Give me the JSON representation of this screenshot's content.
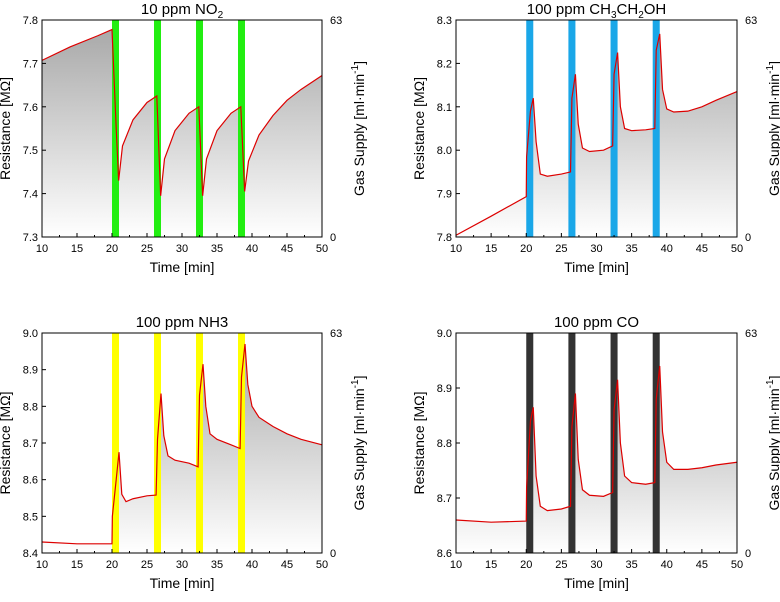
{
  "chart_data": [
    {
      "type": "line",
      "title": "10 ppm NO",
      "title_sub": "2",
      "title_tail": "",
      "xlabel": "Time [min]",
      "ylabel": "Resistance [MΩ]",
      "y2label_main": "Gas Supply [ml·min",
      "y2label_sup": "-1",
      "y2label_end": "]",
      "xlim": [
        10,
        50
      ],
      "ylim": [
        7.3,
        7.8
      ],
      "xticks": [
        "10",
        "15",
        "20",
        "25",
        "30",
        "35",
        "40",
        "45",
        "50"
      ],
      "yticks": [
        "7.3",
        "7.4",
        "7.5",
        "7.6",
        "7.7",
        "7.8"
      ],
      "y2ticks": [
        "0",
        "63"
      ],
      "pulse_color": "#22ee11",
      "pulses": [
        [
          20.0,
          21.0
        ],
        [
          26.0,
          27.0
        ],
        [
          32.0,
          33.0
        ],
        [
          38.0,
          39.0
        ]
      ],
      "series": [
        {
          "name": "Resistance",
          "color": "#dd0000",
          "points": [
            [
              10,
              7.707
            ],
            [
              14,
              7.738
            ],
            [
              18,
              7.764
            ],
            [
              20,
              7.778
            ],
            [
              20.6,
              7.55
            ],
            [
              20.95,
              7.43
            ],
            [
              21.5,
              7.51
            ],
            [
              23,
              7.57
            ],
            [
              25,
              7.61
            ],
            [
              26.4,
              7.625
            ],
            [
              26.95,
              7.395
            ],
            [
              27.5,
              7.48
            ],
            [
              29,
              7.545
            ],
            [
              31,
              7.585
            ],
            [
              32.4,
              7.6
            ],
            [
              32.95,
              7.395
            ],
            [
              33.5,
              7.48
            ],
            [
              35,
              7.545
            ],
            [
              37,
              7.585
            ],
            [
              38.4,
              7.6
            ],
            [
              38.95,
              7.405
            ],
            [
              39.5,
              7.475
            ],
            [
              41,
              7.535
            ],
            [
              43,
              7.58
            ],
            [
              45,
              7.615
            ],
            [
              47,
              7.64
            ],
            [
              50,
              7.672
            ]
          ]
        }
      ]
    },
    {
      "type": "line",
      "title": "100 ppm CH",
      "title_sub": "3",
      "title_tail": "CH",
      "title_sub2": "2",
      "title_end": "OH",
      "xlabel": "Time [min]",
      "ylabel": "Resistance [MΩ]",
      "y2label_main": "Gas Supply [ml·min",
      "y2label_sup": "-1",
      "y2label_end": "]",
      "xlim": [
        10,
        50
      ],
      "ylim": [
        7.8,
        8.3
      ],
      "xticks": [
        "10",
        "15",
        "20",
        "25",
        "30",
        "35",
        "40",
        "45",
        "50"
      ],
      "yticks": [
        "7.8",
        "7.9",
        "8.0",
        "8.1",
        "8.2",
        "8.3"
      ],
      "y2ticks": [
        "0",
        "63"
      ],
      "pulse_color": "#1aa7e8",
      "pulses": [
        [
          20.0,
          21.0
        ],
        [
          26.0,
          27.0
        ],
        [
          32.0,
          33.0
        ],
        [
          38.0,
          39.0
        ]
      ],
      "series": [
        {
          "name": "Resistance",
          "color": "#dd0000",
          "points": [
            [
              10,
              7.804
            ],
            [
              15,
              7.848
            ],
            [
              20,
              7.893
            ],
            [
              20.05,
              7.985
            ],
            [
              20.6,
              8.09
            ],
            [
              21,
              8.12
            ],
            [
              21.4,
              8.02
            ],
            [
              22,
              7.945
            ],
            [
              23,
              7.94
            ],
            [
              25,
              7.945
            ],
            [
              26.3,
              7.95
            ],
            [
              26.5,
              8.12
            ],
            [
              27,
              8.175
            ],
            [
              27.4,
              8.06
            ],
            [
              28,
              8.005
            ],
            [
              29,
              7.997
            ],
            [
              31,
              8.0
            ],
            [
              32.3,
              8.01
            ],
            [
              32.5,
              8.175
            ],
            [
              33,
              8.225
            ],
            [
              33.4,
              8.1
            ],
            [
              34,
              8.05
            ],
            [
              35,
              8.045
            ],
            [
              37,
              8.047
            ],
            [
              38.3,
              8.05
            ],
            [
              38.5,
              8.23
            ],
            [
              39,
              8.268
            ],
            [
              39.4,
              8.14
            ],
            [
              40,
              8.095
            ],
            [
              41,
              8.088
            ],
            [
              43,
              8.09
            ],
            [
              45,
              8.1
            ],
            [
              47,
              8.115
            ],
            [
              50,
              8.135
            ]
          ]
        }
      ]
    },
    {
      "type": "line",
      "title": "100 ppm NH3",
      "xlabel": "Time [min]",
      "ylabel": "Resistance [MΩ]",
      "y2label_main": "Gas Supply [ml·min",
      "y2label_sup": "-1",
      "y2label_end": "]",
      "xlim": [
        10,
        50
      ],
      "ylim": [
        8.4,
        9.0
      ],
      "xticks": [
        "10",
        "15",
        "20",
        "25",
        "30",
        "35",
        "40",
        "45",
        "50"
      ],
      "yticks": [
        "8.4",
        "8.5",
        "8.6",
        "8.7",
        "8.8",
        "8.9",
        "9.0"
      ],
      "y2ticks": [
        "0",
        "63"
      ],
      "pulse_color": "#ffff00",
      "pulses": [
        [
          20.0,
          21.0
        ],
        [
          26.0,
          27.0
        ],
        [
          32.0,
          33.0
        ],
        [
          38.0,
          39.0
        ]
      ],
      "series": [
        {
          "name": "Resistance",
          "color": "#dd0000",
          "points": [
            [
              10,
              8.43
            ],
            [
              15,
              8.425
            ],
            [
              20,
              8.425
            ],
            [
              20.05,
              8.5
            ],
            [
              20.6,
              8.6
            ],
            [
              21,
              8.675
            ],
            [
              21.4,
              8.56
            ],
            [
              22,
              8.54
            ],
            [
              23,
              8.548
            ],
            [
              25,
              8.556
            ],
            [
              26.3,
              8.558
            ],
            [
              26.5,
              8.71
            ],
            [
              27,
              8.835
            ],
            [
              27.4,
              8.72
            ],
            [
              28,
              8.665
            ],
            [
              29,
              8.653
            ],
            [
              31,
              8.645
            ],
            [
              32.3,
              8.635
            ],
            [
              32.5,
              8.83
            ],
            [
              33,
              8.915
            ],
            [
              33.4,
              8.8
            ],
            [
              34,
              8.725
            ],
            [
              35,
              8.71
            ],
            [
              37,
              8.695
            ],
            [
              38.3,
              8.685
            ],
            [
              38.5,
              8.88
            ],
            [
              39,
              8.97
            ],
            [
              39.4,
              8.86
            ],
            [
              40,
              8.8
            ],
            [
              41,
              8.77
            ],
            [
              43,
              8.745
            ],
            [
              45,
              8.725
            ],
            [
              47,
              8.71
            ],
            [
              50,
              8.695
            ]
          ]
        }
      ]
    },
    {
      "type": "line",
      "title": "100 ppm CO",
      "xlabel": "Time [min]",
      "ylabel": "Resistance [MΩ]",
      "y2label_main": "Gas Supply [ml·min",
      "y2label_sup": "-1",
      "y2label_end": "]",
      "xlim": [
        10,
        50
      ],
      "ylim": [
        8.6,
        9.0
      ],
      "xticks": [
        "10",
        "15",
        "20",
        "25",
        "30",
        "35",
        "40",
        "45",
        "50"
      ],
      "yticks": [
        "8.6",
        "8.7",
        "8.8",
        "8.9",
        "9.0"
      ],
      "y2ticks": [
        "0",
        "63"
      ],
      "pulse_color": "#333333",
      "pulses": [
        [
          20.0,
          21.0
        ],
        [
          26.0,
          27.0
        ],
        [
          32.0,
          33.0
        ],
        [
          38.0,
          39.0
        ]
      ],
      "series": [
        {
          "name": "Resistance",
          "color": "#dd0000",
          "points": [
            [
              10,
              8.66
            ],
            [
              15,
              8.656
            ],
            [
              20,
              8.658
            ],
            [
              20.05,
              8.72
            ],
            [
              20.6,
              8.84
            ],
            [
              21,
              8.865
            ],
            [
              21.4,
              8.74
            ],
            [
              22,
              8.685
            ],
            [
              23,
              8.677
            ],
            [
              25,
              8.68
            ],
            [
              26.3,
              8.685
            ],
            [
              26.5,
              8.83
            ],
            [
              27,
              8.89
            ],
            [
              27.4,
              8.77
            ],
            [
              28,
              8.715
            ],
            [
              29,
              8.705
            ],
            [
              31,
              8.703
            ],
            [
              32.3,
              8.71
            ],
            [
              32.5,
              8.86
            ],
            [
              33,
              8.915
            ],
            [
              33.4,
              8.8
            ],
            [
              34,
              8.74
            ],
            [
              35,
              8.728
            ],
            [
              37,
              8.725
            ],
            [
              38.3,
              8.728
            ],
            [
              38.5,
              8.88
            ],
            [
              39,
              8.94
            ],
            [
              39.4,
              8.82
            ],
            [
              40,
              8.765
            ],
            [
              41,
              8.752
            ],
            [
              43,
              8.752
            ],
            [
              45,
              8.755
            ],
            [
              47,
              8.76
            ],
            [
              50,
              8.765
            ]
          ]
        }
      ]
    }
  ]
}
